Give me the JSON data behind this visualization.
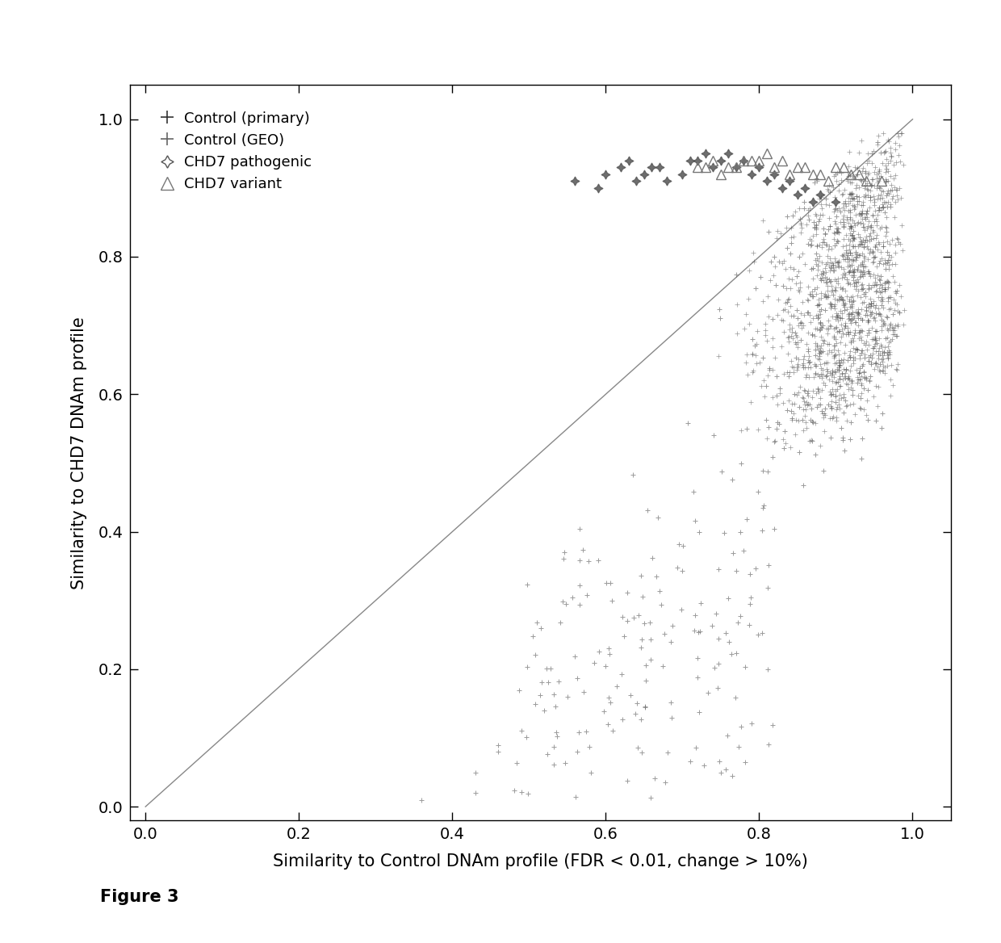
{
  "title": "",
  "xlabel": "Similarity to Control DNAm profile (FDR < 0.01, change > 10%)",
  "ylabel": "Similarity to CHD7 DNAm profile",
  "figure_label": "Figure 3",
  "xlim": [
    -0.02,
    1.05
  ],
  "ylim": [
    -0.02,
    1.05
  ],
  "xticks": [
    0.0,
    0.2,
    0.4,
    0.6,
    0.8,
    1.0
  ],
  "yticks": [
    0.0,
    0.2,
    0.4,
    0.6,
    0.8,
    1.0
  ],
  "diagonal_line_color": "#888888",
  "background_color": "#ffffff",
  "seed": 42,
  "cp_color": "#333333",
  "geo_color": "#666666",
  "chd7p_color": "#555555",
  "chd7v_color": "#777777"
}
